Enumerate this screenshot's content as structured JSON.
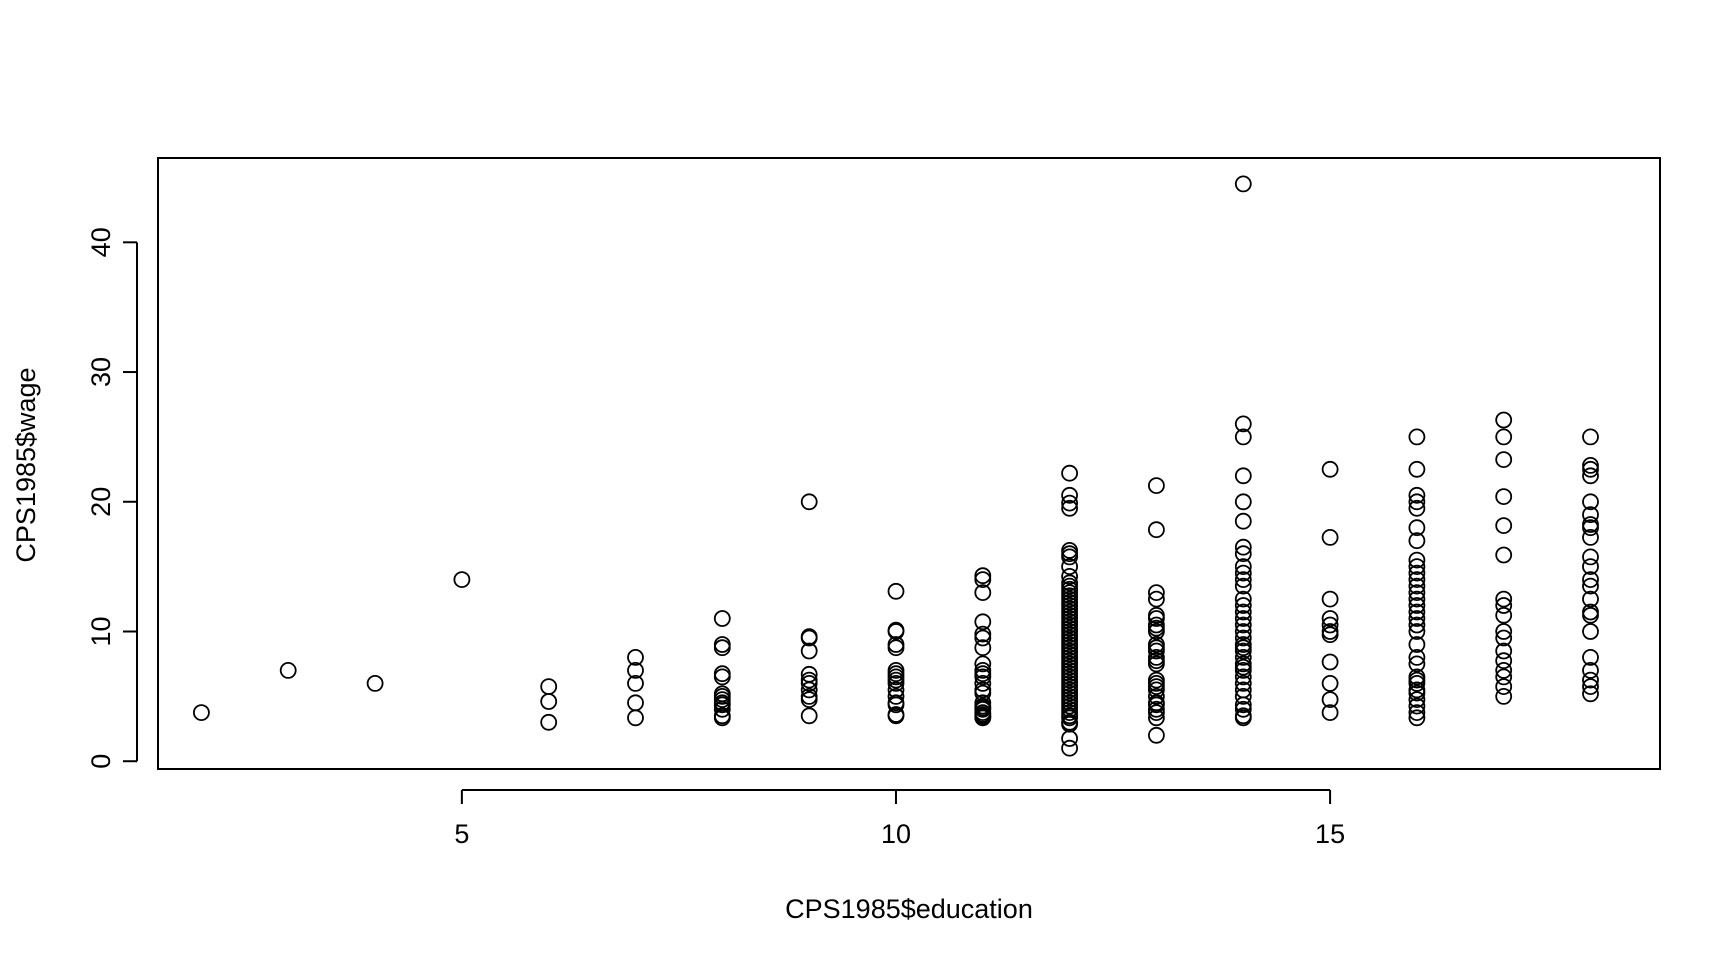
{
  "chart_data": {
    "type": "scatter",
    "title": "",
    "xlabel": "CPS1985$education",
    "ylabel": "CPS1985$wage",
    "xlim": [
      1.5,
      18.8
    ],
    "ylim": [
      -0.6,
      46.5
    ],
    "xticks": [
      5,
      10,
      15
    ],
    "yticks": [
      0,
      10,
      20,
      30,
      40
    ],
    "grid": false,
    "marker": "open-circle",
    "colors": {
      "stroke": "#000000",
      "background": "#ffffff"
    },
    "groups": [
      {
        "x": 2,
        "y": [
          3.75
        ]
      },
      {
        "x": 3,
        "y": [
          7.0
        ]
      },
      {
        "x": 4,
        "y": [
          6.0
        ]
      },
      {
        "x": 5,
        "y": [
          14.0
        ]
      },
      {
        "x": 6,
        "y": [
          3.0,
          4.6,
          5.75
        ]
      },
      {
        "x": 7,
        "y": [
          3.35,
          4.5,
          6.0,
          7.0,
          8.0
        ]
      },
      {
        "x": 8,
        "y": [
          3.35,
          3.5,
          4.0,
          4.35,
          4.5,
          4.75,
          5.0,
          5.2,
          6.5,
          6.75,
          8.75,
          9.0,
          11.0
        ]
      },
      {
        "x": 9,
        "y": [
          3.5,
          4.75,
          5.0,
          5.5,
          6.0,
          6.25,
          6.7,
          8.5,
          9.5,
          9.6,
          20.0
        ]
      },
      {
        "x": 10,
        "y": [
          3.5,
          3.6,
          4.35,
          4.5,
          5.0,
          5.5,
          6.0,
          6.25,
          6.5,
          6.75,
          7.0,
          8.75,
          9.0,
          10.0,
          10.1,
          13.1
        ]
      },
      {
        "x": 11,
        "y": [
          3.35,
          3.4,
          3.5,
          3.6,
          3.75,
          4.0,
          4.1,
          4.25,
          4.5,
          5.25,
          5.5,
          6.0,
          6.5,
          6.75,
          7.0,
          7.5,
          8.75,
          9.5,
          9.8,
          10.75,
          13.0,
          14.0,
          14.3
        ]
      },
      {
        "x": 12,
        "y": [
          1.0,
          1.75,
          2.85,
          3.0,
          3.35,
          3.5,
          3.75,
          4.0,
          4.25,
          4.5,
          4.75,
          5.0,
          5.25,
          5.5,
          5.75,
          6.0,
          6.25,
          6.5,
          6.75,
          7.0,
          7.25,
          7.5,
          7.75,
          8.0,
          8.25,
          8.5,
          8.75,
          9.0,
          9.25,
          9.5,
          9.75,
          10.0,
          10.25,
          10.5,
          10.75,
          11.0,
          11.25,
          11.5,
          11.75,
          12.0,
          12.25,
          12.5,
          12.75,
          13.0,
          13.25,
          13.5,
          13.75,
          14.25,
          15.0,
          15.75,
          16.0,
          16.25,
          19.5,
          19.9,
          20.5,
          22.2
        ]
      },
      {
        "x": 13,
        "y": [
          2.0,
          3.35,
          3.75,
          4.0,
          4.35,
          4.5,
          5.0,
          5.5,
          5.75,
          6.0,
          6.25,
          7.5,
          7.75,
          8.0,
          8.5,
          8.75,
          9.0,
          10.0,
          10.25,
          10.5,
          11.0,
          11.25,
          12.5,
          13.0,
          17.85,
          21.25
        ]
      },
      {
        "x": 14,
        "y": [
          3.35,
          3.5,
          4.0,
          4.35,
          5.0,
          5.5,
          6.0,
          6.5,
          7.0,
          7.25,
          7.5,
          8.0,
          8.5,
          8.75,
          9.0,
          9.5,
          10.0,
          10.5,
          11.0,
          11.5,
          12.0,
          12.5,
          13.5,
          14.0,
          14.5,
          15.0,
          16.0,
          16.5,
          18.5,
          20.0,
          22.0,
          25.0,
          26.0,
          44.5
        ]
      },
      {
        "x": 15,
        "y": [
          3.75,
          4.75,
          6.0,
          7.65,
          9.75,
          10.0,
          10.5,
          11.0,
          12.5,
          17.25,
          22.5
        ]
      },
      {
        "x": 16,
        "y": [
          3.35,
          3.75,
          4.25,
          4.75,
          5.25,
          5.5,
          6.0,
          6.25,
          6.5,
          7.5,
          8.0,
          9.0,
          10.0,
          10.5,
          11.0,
          11.5,
          12.0,
          12.5,
          13.0,
          13.5,
          14.0,
          14.5,
          15.0,
          15.5,
          17.0,
          18.0,
          19.5,
          20.0,
          20.5,
          22.5,
          25.0
        ]
      },
      {
        "x": 17,
        "y": [
          5.0,
          5.75,
          6.5,
          7.0,
          7.75,
          8.5,
          9.5,
          10.0,
          11.25,
          12.0,
          12.5,
          15.9,
          18.16,
          20.4,
          23.25,
          25.0,
          26.3
        ]
      },
      {
        "x": 18,
        "y": [
          5.2,
          5.75,
          6.25,
          7.0,
          8.0,
          10.0,
          11.25,
          11.5,
          12.5,
          13.5,
          14.0,
          15.0,
          15.75,
          17.25,
          18.0,
          18.25,
          19.0,
          20.0,
          22.0,
          22.5,
          22.8,
          25.0
        ]
      }
    ]
  }
}
